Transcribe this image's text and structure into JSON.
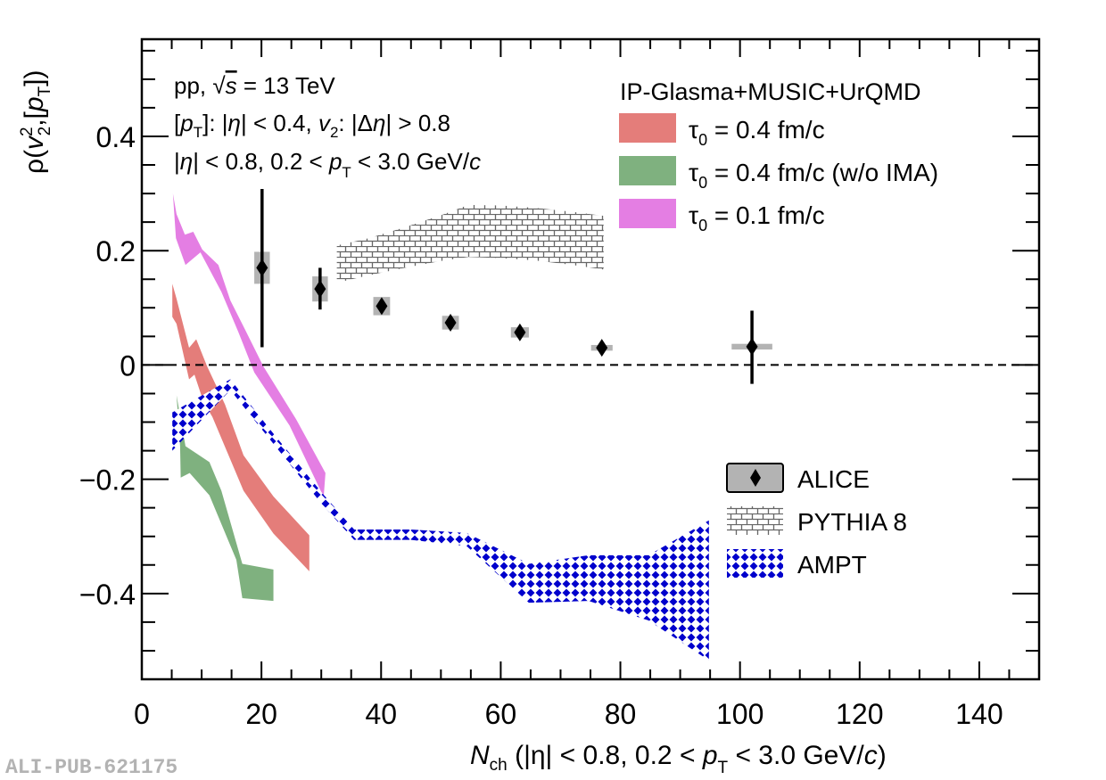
{
  "chart_data": {
    "type": "scatter",
    "title": "",
    "xlabel": "N_ch (|η| < 0.8, 0.2 < p_T < 3.0 GeV/c)",
    "xlabel_parts": {
      "main": "N",
      "sub": "ch",
      "rest1": " (|η| < 0.8, 0.2 <  ",
      "p": "p",
      "psub": "T",
      "rest2": " < 3.0 GeV/",
      "c": "c",
      "close": ")"
    },
    "ylabel": "ρ(v2², [pT])",
    "ylabel_parts": {
      "rho": "ρ(",
      "v": "v",
      "vsup": "2",
      "vsub": "2",
      "comma": ",[",
      "p": "p",
      "psub": "T",
      "close": "])"
    },
    "xlim": [
      0,
      150
    ],
    "ylim": [
      -0.55,
      0.57
    ],
    "x_ticks": [
      0,
      20,
      40,
      60,
      80,
      100,
      120,
      140
    ],
    "x_tick_labels": [
      "0",
      "20",
      "40",
      "60",
      "80",
      "100",
      "120",
      "140"
    ],
    "y_ticks": [
      -0.4,
      -0.2,
      0,
      0.2,
      0.4
    ],
    "y_tick_labels": [
      "−0.4",
      "−0.2",
      "0",
      "0.2",
      "0.4"
    ],
    "x_minor_step": 5,
    "y_minor_step": 0.05,
    "reference_line": {
      "y": 0,
      "style": "dashed"
    },
    "grid": false,
    "annotations": {
      "line1": {
        "a": "pp,   ",
        "sqrt": "√",
        "s": "s",
        "b": " = 13 TeV"
      },
      "line2": {
        "a": "[",
        "p": "p",
        "psub": "T",
        "b": "]: |",
        "eta": "η",
        "c": "| < 0.4,   ",
        "v": "v",
        "vsub": "2",
        "d": ": |Δ",
        "eta2": "η",
        "e": "| > 0.8"
      },
      "line3": {
        "a": "|",
        "eta": "η",
        "b": "| < 0.8, 0.2 <   ",
        "p": "p",
        "psub": "T",
        "c": " < 3.0 GeV/",
        "cc": "c"
      }
    },
    "legend_theory": {
      "header": "IP-Glasma+MUSIC+UrQMD",
      "position": "top-right",
      "entries": [
        {
          "tau": "τ",
          "sub": "0",
          "label": " = 0.4 fm/c",
          "color": "#e47d7a"
        },
        {
          "tau": "τ",
          "sub": "0",
          "label": " = 0.4 fm/c (w/o IMA)",
          "color": "#7fb17f"
        },
        {
          "tau": "τ",
          "sub": "0",
          "label": " = 0.1 fm/c",
          "color": "#e47ee3"
        }
      ]
    },
    "legend_data": {
      "position": "bottom-right",
      "entries": [
        {
          "label": "ALICE",
          "style": "marker-box"
        },
        {
          "label": "PYTHIA 8",
          "style": "brick-hatch"
        },
        {
          "label": "AMPT",
          "style": "blue-crosshatch"
        }
      ]
    },
    "series": [
      {
        "name": "ALICE",
        "type": "points",
        "marker": "diamond",
        "color": "#000000",
        "sys_color": "#b3b3b3",
        "points": [
          {
            "x": 20.1,
            "y": 0.17,
            "stat_up": 0.138,
            "stat_down": 0.139,
            "sys": 0.028,
            "xerr": 1.3
          },
          {
            "x": 29.8,
            "y": 0.133,
            "stat_up": 0.037,
            "stat_down": 0.036,
            "sys": 0.022,
            "xerr": 1.3
          },
          {
            "x": 40.1,
            "y": 0.103,
            "stat_up": 0.008,
            "stat_down": 0.008,
            "sys": 0.016,
            "xerr": 1.4
          },
          {
            "x": 51.6,
            "y": 0.074,
            "stat_up": 0.008,
            "stat_down": 0.008,
            "sys": 0.012,
            "xerr": 1.4
          },
          {
            "x": 63.2,
            "y": 0.057,
            "stat_up": 0.01,
            "stat_down": 0.01,
            "sys": 0.009,
            "xerr": 1.5
          },
          {
            "x": 76.9,
            "y": 0.03,
            "stat_up": 0.01,
            "stat_down": 0.01,
            "sys": 0.005,
            "xerr": 1.8
          },
          {
            "x": 102.0,
            "y": 0.032,
            "stat_up": 0.063,
            "stat_down": 0.065,
            "sys": 0.005,
            "xerr": 3.4
          }
        ]
      },
      {
        "name": "PYTHIA 8",
        "type": "band",
        "style": "brick-hatch",
        "x": [
          32.6,
          38.0,
          44.0,
          50.0,
          54.6,
          60.0,
          65.7,
          72.0,
          77.2
        ],
        "upper": [
          0.209,
          0.222,
          0.241,
          0.262,
          0.28,
          0.279,
          0.275,
          0.268,
          0.261
        ],
        "lower": [
          0.144,
          0.157,
          0.17,
          0.182,
          0.189,
          0.187,
          0.183,
          0.175,
          0.167
        ]
      },
      {
        "name": "AMPT",
        "type": "band",
        "style": "blue-crosshatch",
        "color": "#0000cc",
        "x": [
          5.1,
          14.8,
          22.0,
          30.3,
          35.5,
          45.0,
          54.3,
          64.7,
          74.7,
          84.7,
          94.8
        ],
        "upper": [
          -0.083,
          -0.025,
          -0.12,
          -0.226,
          -0.288,
          -0.288,
          -0.294,
          -0.348,
          -0.333,
          -0.333,
          -0.272
        ],
        "lower": [
          -0.15,
          -0.044,
          -0.138,
          -0.246,
          -0.306,
          -0.306,
          -0.317,
          -0.416,
          -0.413,
          -0.447,
          -0.517
        ]
      },
      {
        "name": "τ0 = 0.4 fm/c",
        "type": "band",
        "color": "#e47d7a",
        "upper_pts": [
          [
            5.1,
            0.142
          ],
          [
            5.8,
            0.116
          ],
          [
            7.9,
            0.03
          ],
          [
            9.1,
            0.045
          ],
          [
            10.9,
            -0.002
          ],
          [
            13.9,
            -0.069
          ],
          [
            17.0,
            -0.158
          ],
          [
            22.0,
            -0.23
          ],
          [
            28.0,
            -0.298
          ]
        ],
        "lower_pts": [
          [
            5.1,
            0.084
          ],
          [
            5.8,
            0.072
          ],
          [
            7.9,
            -0.025
          ],
          [
            8.8,
            -0.017
          ],
          [
            10.3,
            -0.064
          ],
          [
            11.8,
            -0.091
          ],
          [
            17.0,
            -0.22
          ],
          [
            22.0,
            -0.295
          ],
          [
            28.0,
            -0.361
          ]
        ]
      },
      {
        "name": "τ0 = 0.4 fm/c (w/o IMA)",
        "type": "band",
        "color": "#7fb17f",
        "upper_pts": [
          [
            5.8,
            -0.053
          ],
          [
            7.3,
            -0.142
          ],
          [
            11.3,
            -0.17
          ],
          [
            13.3,
            -0.22
          ],
          [
            16.8,
            -0.348
          ],
          [
            22.0,
            -0.358
          ]
        ],
        "lower_pts": [
          [
            6.4,
            -0.142
          ],
          [
            6.5,
            -0.197
          ],
          [
            8.0,
            -0.189
          ],
          [
            11.3,
            -0.228
          ],
          [
            15.8,
            -0.341
          ],
          [
            16.8,
            -0.408
          ],
          [
            22.0,
            -0.413
          ]
        ]
      },
      {
        "name": "τ0 = 0.1 fm/c",
        "type": "band",
        "color": "#e47ee3",
        "upper_pts": [
          [
            5.2,
            0.3
          ],
          [
            5.8,
            0.264
          ],
          [
            7.2,
            0.228
          ],
          [
            8.6,
            0.233
          ],
          [
            10.1,
            0.202
          ],
          [
            12.8,
            0.175
          ],
          [
            14.8,
            0.113
          ],
          [
            17.3,
            0.061
          ],
          [
            20.3,
            -0.002
          ],
          [
            25.8,
            -0.095
          ],
          [
            30.7,
            -0.189
          ]
        ],
        "lower_pts": [
          [
            5.7,
            0.222
          ],
          [
            7.3,
            0.175
          ],
          [
            9.8,
            0.197
          ],
          [
            13.3,
            0.128
          ],
          [
            16.2,
            0.056
          ],
          [
            18.8,
            -0.013
          ],
          [
            24.7,
            -0.106
          ],
          [
            30.4,
            -0.231
          ]
        ]
      }
    ]
  },
  "watermark": "ALI-PUB-621175"
}
